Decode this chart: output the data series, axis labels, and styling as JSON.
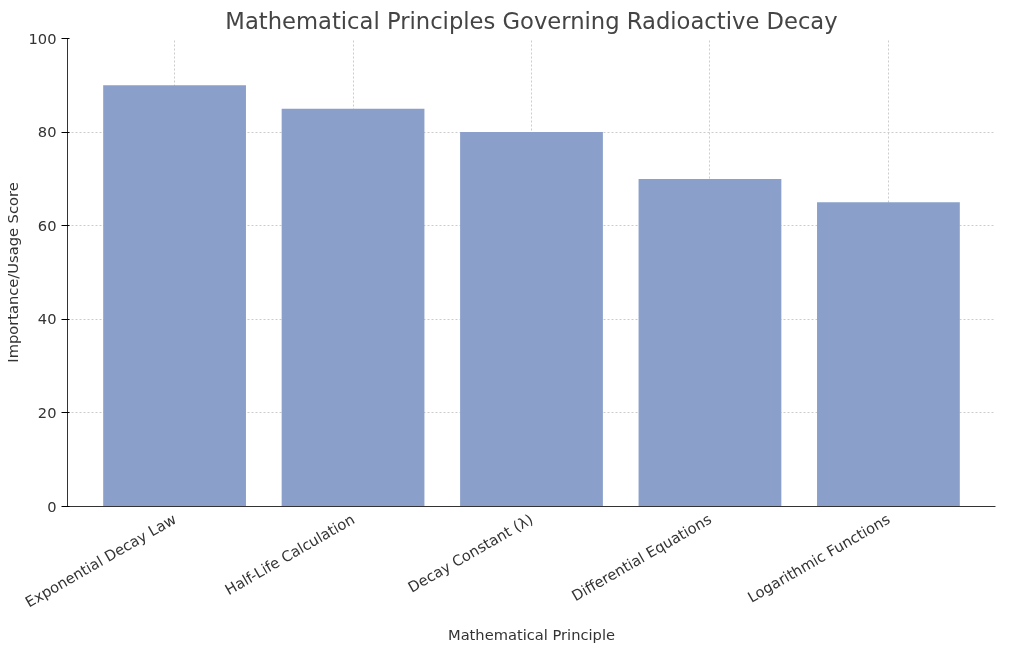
{
  "chart_data": {
    "type": "bar",
    "title": "Mathematical Principles Governing Radioactive Decay",
    "xlabel": "Mathematical Principle",
    "ylabel": "Importance/Usage Score",
    "categories": [
      "Exponential Decay Law",
      "Half-Life Calculation",
      "Decay Constant (λ)",
      "Differential Equations",
      "Logarithmic Functions"
    ],
    "values": [
      90,
      85,
      80,
      70,
      65
    ],
    "color": "#8a9fc9",
    "ylim": [
      0,
      100
    ],
    "yticks": [
      0,
      20,
      40,
      60,
      80,
      100
    ],
    "grid": true
  }
}
